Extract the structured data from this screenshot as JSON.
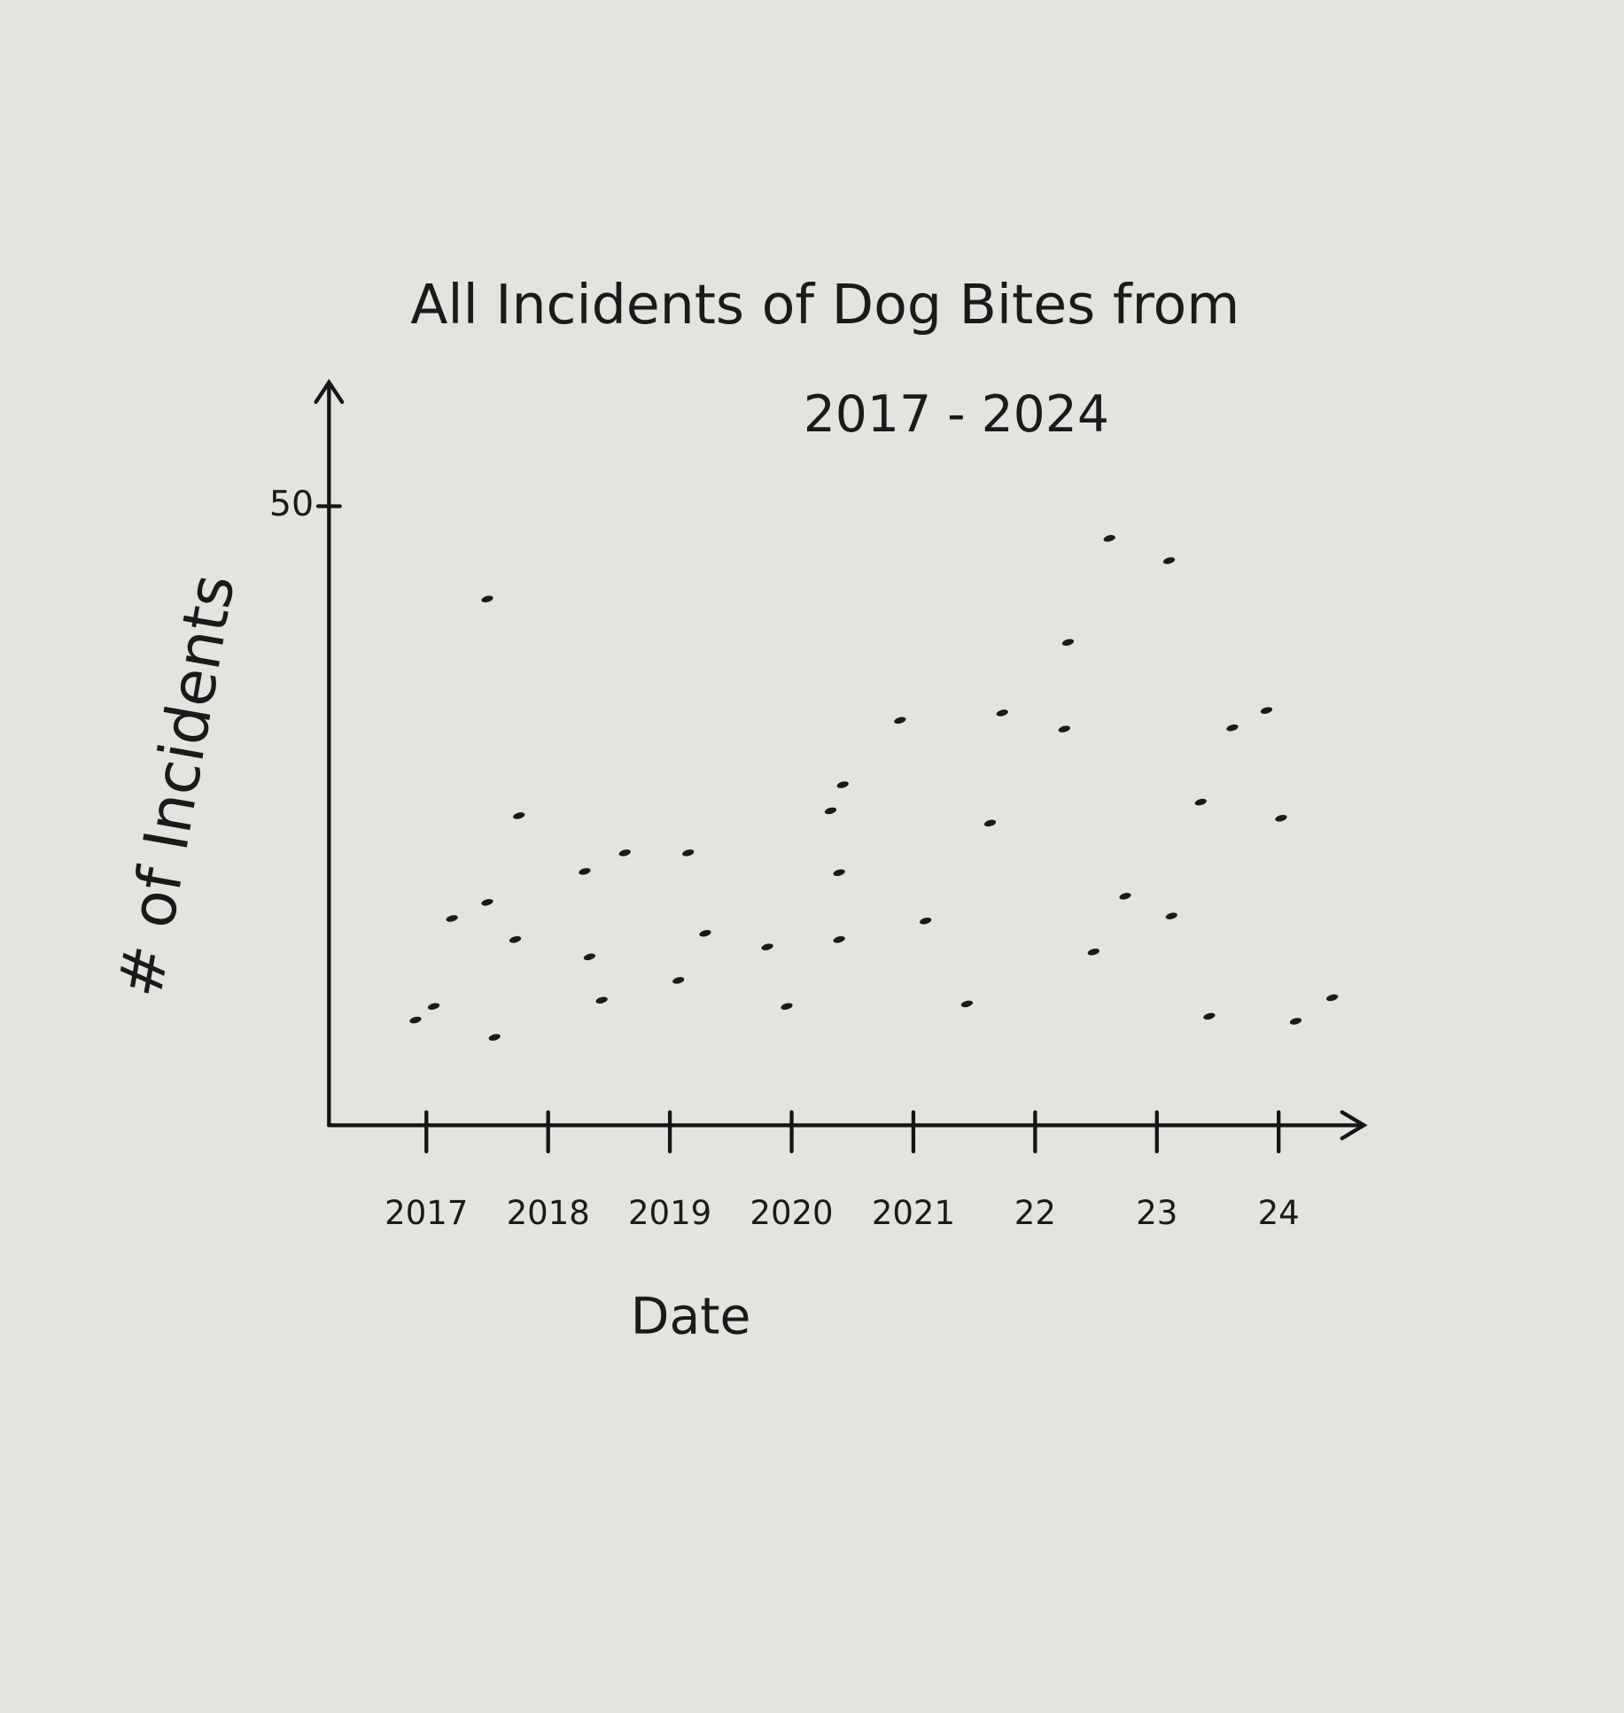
{
  "chart_data": {
    "type": "scatter",
    "title": [
      "All Incidents of Dog Bites from",
      "2017 - 2024"
    ],
    "x_label": "Date",
    "y_label": "# of Incidents",
    "xlim": [
      2016.2,
      2024.7
    ],
    "ylim": [
      0,
      60
    ],
    "xticks": [
      2017,
      2018,
      2019,
      2020,
      2021,
      {
        "value": 2022,
        "label": "22"
      },
      {
        "value": 2023,
        "label": "23"
      },
      {
        "value": 2024,
        "label": "24"
      }
    ],
    "yticks": [
      50
    ],
    "color": "#1a1a1a",
    "x": [
      2016.91,
      2017.06,
      2017.21,
      2017.5,
      2017.5,
      2017.56,
      2017.73,
      2017.76,
      2018.3,
      2018.34,
      2018.44,
      2018.63,
      2019.15,
      2019.07,
      2019.29,
      2019.8,
      2019.96,
      2020.39,
      2020.39,
      2020.32,
      2020.42,
      2020.89,
      2021.1,
      2021.44,
      2021.63,
      2021.73,
      2022.24,
      2022.27,
      2022.48,
      2022.61,
      2022.74,
      2023.1,
      2023.12,
      2023.36,
      2023.43,
      2023.62,
      2023.9,
      2024.02,
      2024.14,
      2024.44
    ],
    "values": [
      8.5,
      9.6,
      16.7,
      18,
      42.5,
      7.1,
      15,
      25,
      20.5,
      13.6,
      10.1,
      22,
      22,
      11.7,
      15.5,
      14.4,
      9.6,
      15,
      20.4,
      25.4,
      27.5,
      32.7,
      16.5,
      9.8,
      24.4,
      33.3,
      32,
      39,
      14,
      47.4,
      18.5,
      45.6,
      16.9,
      26.1,
      8.8,
      32.1,
      33.5,
      24.8,
      8.4,
      10.3
    ]
  }
}
